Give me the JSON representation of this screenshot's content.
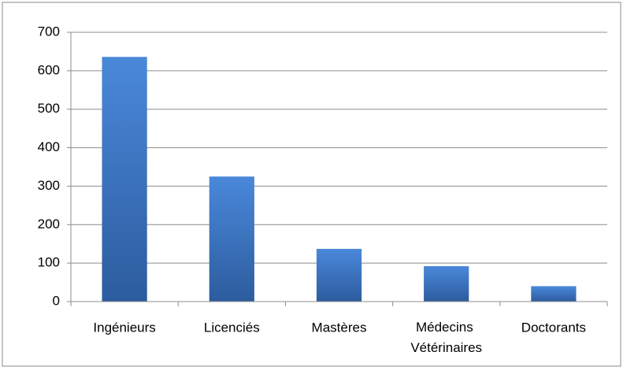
{
  "chart_data": {
    "type": "bar",
    "categories": [
      "Ingénieurs",
      "Licenciés",
      "Mastères",
      "Médecins Vétérinaires",
      "Doctorants"
    ],
    "values": [
      636,
      325,
      137,
      92,
      40
    ],
    "color": "#3b74c4",
    "ylim": [
      0,
      700
    ],
    "yticks": [
      0,
      100,
      200,
      300,
      400,
      500,
      600,
      700
    ],
    "grid": true
  }
}
